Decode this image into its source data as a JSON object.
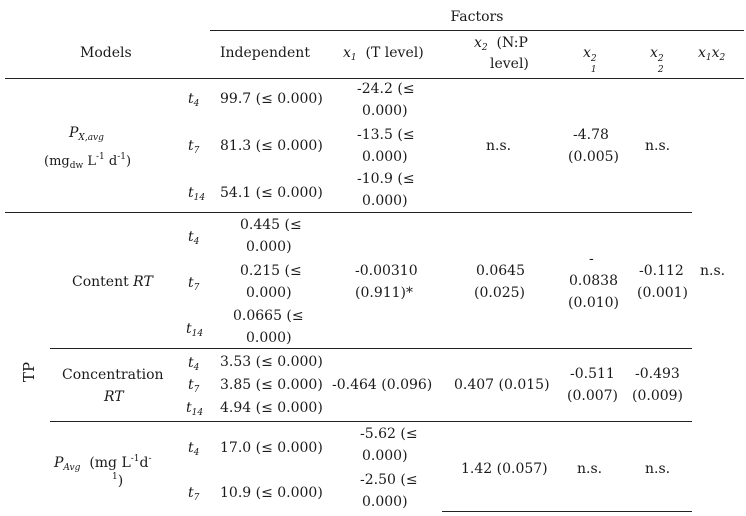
{
  "header": {
    "factors": "Factors",
    "models": "Models",
    "independent": "Independent",
    "x1_label": "(T level)",
    "x2_label_1": "(N:P",
    "x2_label_2": "level)",
    "x1": "x",
    "x2": "x",
    "sq": "2",
    "n1": "1",
    "n2": "2"
  },
  "px": {
    "label": "P",
    "label_sub": "X,avg",
    "unit_pre": "(mg",
    "unit_dw": "dw",
    "unit_mid": "L",
    "unit_exp": "-1",
    "unit_d": "d",
    "unit_end": ")",
    "rows": [
      {
        "t": "t",
        "ts": "4",
        "ind": "99.7 (≤ 0.000)",
        "x1a": "-24.2 (≤",
        "x1b": "0.000)"
      },
      {
        "t": "t",
        "ts": "7",
        "ind": "81.3 (≤ 0.000)",
        "x1a": "-13.5 (≤",
        "x1b": "0.000)"
      },
      {
        "t": "t",
        "ts": "14",
        "ind": "54.1 (≤ 0.000)",
        "x1a": "-10.9 (≤",
        "x1b": "0.000)"
      }
    ],
    "x2": "n.s.",
    "x1sq_a": "-4.78",
    "x1sq_b": "(0.005)",
    "x2sq": "n.s."
  },
  "tp": "TP",
  "content": {
    "label": "Content",
    "label_it": "RT",
    "rows": [
      {
        "t": "t",
        "ts": "4",
        "a": "0.445 (≤",
        "b": "0.000)"
      },
      {
        "t": "t",
        "ts": "7",
        "a": "0.215 (≤",
        "b": "0.000)"
      },
      {
        "t": "t",
        "ts": "14",
        "a": "0.0665 (≤",
        "b": "0.000)"
      }
    ],
    "x1a": "-0.00310",
    "x1b": "(0.911)*",
    "x2a": "0.0645",
    "x2b": "(0.025)",
    "x1sq_a": "-",
    "x1sq_b": "0.0838",
    "x1sq_c": "(0.010)",
    "x2sq_a": "-0.112",
    "x2sq_b": "(0.001)",
    "x1x2": "n.s."
  },
  "conc": {
    "label1": "Concentration",
    "label_it": "RT",
    "rows": [
      {
        "t": "t",
        "ts": "4",
        "ind": "3.53 (≤ 0.000)"
      },
      {
        "t": "t",
        "ts": "7",
        "ind": "3.85 (≤ 0.000)"
      },
      {
        "t": "t",
        "ts": "14",
        "ind": "4.94 (≤ 0.000)"
      }
    ],
    "x1": "-0.464 (0.096)",
    "x2": "0.407 (0.015)",
    "x1sq_a": "-0.511",
    "x1sq_b": "(0.007)",
    "x2sq_a": "-0.493",
    "x2sq_b": "(0.009)"
  },
  "pavg": {
    "label": "P",
    "label_sub": "Avg",
    "unit_a": "(mg L",
    "unit_exp": "-1",
    "unit_d": "d",
    "unit_exp2": "-",
    "unit_end": "1",
    "unit_close": ")",
    "rows": [
      {
        "t": "t",
        "ts": "4",
        "ind": "17.0 (≤ 0.000)",
        "x1a": "-5.62 (≤",
        "x1b": "0.000)"
      },
      {
        "t": "t",
        "ts": "7",
        "ind": "10.9 (≤ 0.000)",
        "x1a": "-2.50 (≤",
        "x1b": "0.000)"
      }
    ],
    "x2": "1.42 (0.057)",
    "x1sq": "n.s.",
    "x2sq": "n.s."
  }
}
